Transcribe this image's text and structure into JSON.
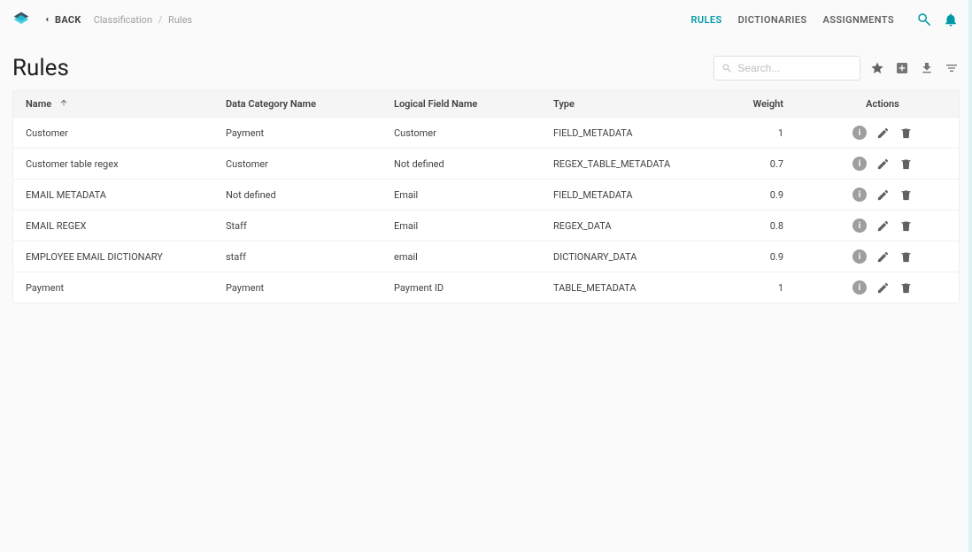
{
  "topbar": {
    "back_label": "BACK",
    "breadcrumbs": [
      "Classification",
      "Rules"
    ],
    "nav": {
      "rules": "RULES",
      "dictionaries": "DICTIONARIES",
      "assignments": "ASSIGNMENTS"
    }
  },
  "page": {
    "title": "Rules",
    "search_placeholder": "Search..."
  },
  "table": {
    "columns": {
      "name": "Name",
      "category": "Data Category Name",
      "logical_field": "Logical Field Name",
      "type": "Type",
      "weight": "Weight",
      "actions": "Actions"
    },
    "rows": [
      {
        "name": "Customer",
        "category": "Payment",
        "logical_field": "Customer",
        "type": "FIELD_METADATA",
        "weight": "1"
      },
      {
        "name": "Customer table regex",
        "category": "Customer",
        "logical_field": "Not defined",
        "type": "REGEX_TABLE_METADATA",
        "weight": "0.7"
      },
      {
        "name": "EMAIL METADATA",
        "category": "Not defined",
        "logical_field": "Email",
        "type": "FIELD_METADATA",
        "weight": "0.9"
      },
      {
        "name": "EMAIL REGEX",
        "category": "Staff",
        "logical_field": "Email",
        "type": "REGEX_DATA",
        "weight": "0.8"
      },
      {
        "name": "EMPLOYEE EMAIL DICTIONARY",
        "category": "staff",
        "logical_field": "email",
        "type": "DICTIONARY_DATA",
        "weight": "0.9"
      },
      {
        "name": "Payment",
        "category": "Payment",
        "logical_field": "Payment  ID",
        "type": "TABLE_METADATA",
        "weight": "1"
      }
    ]
  },
  "colors": {
    "accent": "#0097a7",
    "icon_grey": "#757575",
    "icon_dark": "#616161",
    "bg": "#fafafa"
  }
}
